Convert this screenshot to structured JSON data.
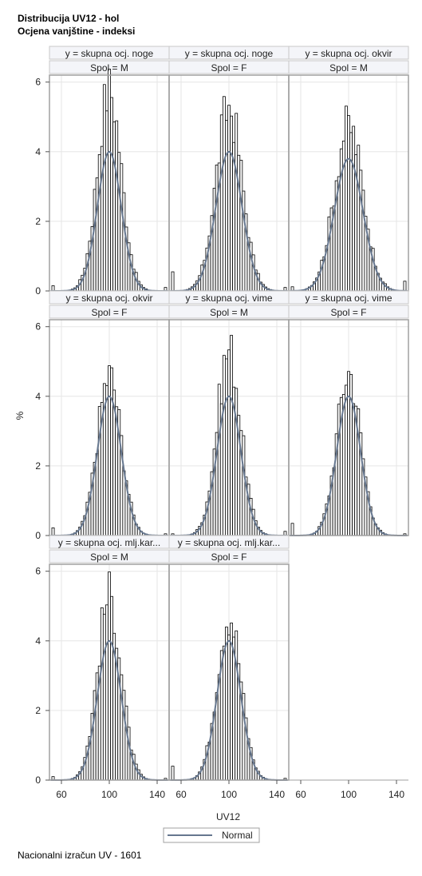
{
  "title_line1": "Distribucija UV12 - hol",
  "title_line2": "Ocjena vanjštine - indeksi",
  "footnote": "Nacionalni izračun UV - 1601",
  "colors": {
    "bars_fill": "#ffffff",
    "bars_stroke": "#000000",
    "normal_curve": "#66778f",
    "grid": "#e6e6e6",
    "header_fill": "#f4f5f9",
    "frame": "#a0a0a0"
  },
  "chart_data": {
    "type": "bar",
    "xlabel": "UV12",
    "ylabel": "%",
    "xlim": [
      50,
      150
    ],
    "ylim": [
      0,
      6.2
    ],
    "x_ticks": [
      60,
      100,
      140
    ],
    "y_ticks": [
      0,
      2,
      4,
      6
    ],
    "grid": true,
    "legend": {
      "position": "bottom",
      "entries": [
        "Normal"
      ]
    },
    "panels": [
      {
        "row_label": "y = skupna ocj. noge",
        "col_label": "Spol = M",
        "peak": 6.05,
        "mean": 100,
        "sd": 10,
        "normal_peak": 4.0,
        "edge_low": 0.15,
        "edge_high": 0.1
      },
      {
        "row_label": "y = skupna ocj. noge",
        "col_label": "Spol = F",
        "peak": 5.5,
        "mean": 100,
        "sd": 11,
        "normal_peak": 4.0,
        "edge_low": 0.55,
        "edge_high": 0.1
      },
      {
        "row_label": "y = skupna ocj. okvir",
        "col_label": "Spol = M",
        "peak": 4.95,
        "mean": 100,
        "sd": 12,
        "normal_peak": 3.8,
        "edge_low": 0.12,
        "edge_high": 0.28
      },
      {
        "row_label": "y = skupna ocj. okvir",
        "col_label": "Spol = F",
        "peak": 4.8,
        "mean": 100,
        "sd": 10,
        "normal_peak": 4.0,
        "edge_low": 0.22,
        "edge_high": 0.05
      },
      {
        "row_label": "y = skupna ocj. vime",
        "col_label": "Spol = M",
        "peak": 5.55,
        "mean": 100,
        "sd": 10,
        "normal_peak": 4.0,
        "edge_low": 0.05,
        "edge_high": 0.12
      },
      {
        "row_label": "y = skupna ocj. vime",
        "col_label": "Spol = F",
        "peak": 4.9,
        "mean": 100,
        "sd": 10,
        "normal_peak": 4.0,
        "edge_low": 0.35,
        "edge_high": 0.05
      },
      {
        "row_label": "y = skupna ocj. mlj.kar...",
        "col_label": "Spol = M",
        "peak": 5.5,
        "mean": 100,
        "sd": 10,
        "normal_peak": 4.0,
        "edge_low": 0.1,
        "edge_high": 0.05
      },
      {
        "row_label": "y = skupna ocj. mlj.kar...",
        "col_label": "Spol = F",
        "peak": 5.0,
        "mean": 100,
        "sd": 10,
        "normal_peak": 4.0,
        "edge_low": 0.4,
        "edge_high": 0.05
      }
    ]
  }
}
